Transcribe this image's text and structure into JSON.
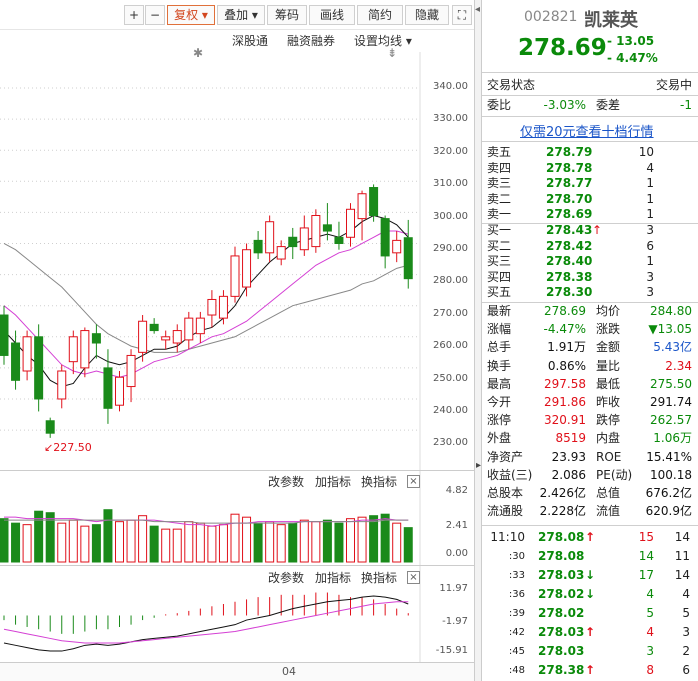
{
  "toolbar": {
    "buttons": [
      "+",
      "−",
      "复权",
      "叠加",
      "筹码",
      "画线",
      "简约",
      "隐藏"
    ],
    "expand_icon": "⛶"
  },
  "subbar": {
    "items": [
      "深股通",
      "融资融券",
      "设置均线"
    ]
  },
  "price_axis": [
    "340.00",
    "330.00",
    "320.00",
    "310.00",
    "300.00",
    "290.00",
    "280.00",
    "270.00",
    "260.00",
    "250.00",
    "240.00",
    "230.00"
  ],
  "low_marker": "227.50",
  "vol_panel": {
    "btns": [
      "改参数",
      "加指标",
      "换指标"
    ],
    "axis": [
      "4.82",
      "2.41",
      "0.00"
    ]
  },
  "macd_panel": {
    "btns": [
      "改参数",
      "加指标",
      "换指标"
    ],
    "axis": [
      "11.97",
      "-1.97",
      "-15.91"
    ]
  },
  "date_label": "04",
  "stock": {
    "code": "002821",
    "name": "凯莱英",
    "price": "278.69",
    "change": "- 13.05",
    "pct": "- 4.47%"
  },
  "status": {
    "label": "交易状态",
    "value": "交易中"
  },
  "weibi": {
    "l1": "委比",
    "v1": "-3.03%",
    "l2": "委差",
    "v2": "-1"
  },
  "promo": "仅需20元查看十档行情",
  "asks": [
    {
      "label": "卖五",
      "price": "278.79",
      "vol": "10"
    },
    {
      "label": "卖四",
      "price": "278.78",
      "vol": "4"
    },
    {
      "label": "卖三",
      "price": "278.77",
      "vol": "1"
    },
    {
      "label": "卖二",
      "price": "278.70",
      "vol": "1"
    },
    {
      "label": "卖一",
      "price": "278.69",
      "vol": "1"
    }
  ],
  "bids": [
    {
      "label": "买一",
      "price": "278.43",
      "vol": "3",
      "arrow": "↑"
    },
    {
      "label": "买二",
      "price": "278.42",
      "vol": "6",
      "arrow": ""
    },
    {
      "label": "买三",
      "price": "278.40",
      "vol": "1",
      "arrow": ""
    },
    {
      "label": "买四",
      "price": "278.38",
      "vol": "3",
      "arrow": ""
    },
    {
      "label": "买五",
      "price": "278.30",
      "vol": "3",
      "arrow": ""
    }
  ],
  "stats": [
    {
      "l1": "最新",
      "v1": "278.69",
      "c1": "green",
      "l2": "均价",
      "v2": "284.80",
      "c2": "green"
    },
    {
      "l1": "涨幅",
      "v1": "-4.47%",
      "c1": "green",
      "l2": "涨跌",
      "v2": "▼13.05",
      "c2": "green"
    },
    {
      "l1": "总手",
      "v1": "1.91万",
      "c1": "blk",
      "l2": "金额",
      "v2": "5.43亿",
      "c2": "blue"
    },
    {
      "l1": "换手",
      "v1": "0.86%",
      "c1": "blk",
      "l2": "量比",
      "v2": "2.34",
      "c2": "red"
    },
    {
      "l1": "最高",
      "v1": "297.58",
      "c1": "red",
      "l2": "最低",
      "v2": "275.50",
      "c2": "green"
    },
    {
      "l1": "今开",
      "v1": "291.86",
      "c1": "red",
      "l2": "昨收",
      "v2": "291.74",
      "c2": "blk"
    },
    {
      "l1": "涨停",
      "v1": "320.91",
      "c1": "red",
      "l2": "跌停",
      "v2": "262.57",
      "c2": "green"
    },
    {
      "l1": "外盘",
      "v1": "8519",
      "c1": "red",
      "l2": "内盘",
      "v2": "1.06万",
      "c2": "green"
    },
    {
      "l1": "净资产",
      "v1": "23.93",
      "c1": "blk",
      "l2": "ROE",
      "v2": "15.41%",
      "c2": "blk"
    },
    {
      "l1": "收益(三)",
      "v1": "2.086",
      "c1": "blk",
      "l2": "PE(动)",
      "v2": "100.18",
      "c2": "blk"
    },
    {
      "l1": "总股本",
      "v1": "2.426亿",
      "c1": "blk",
      "l2": "总值",
      "v2": "676.2亿",
      "c2": "blk"
    },
    {
      "l1": "流通股",
      "v1": "2.228亿",
      "c1": "blk",
      "l2": "流值",
      "v2": "620.9亿",
      "c2": "blk"
    }
  ],
  "ticks": [
    {
      "time": "11:10",
      "price": "278.08",
      "arrow": "↑",
      "ac": "red",
      "vol": "15",
      "vc": "red",
      "n": "14"
    },
    {
      "time": ":30",
      "price": "278.08",
      "arrow": "",
      "ac": "",
      "vol": "14",
      "vc": "green",
      "n": "11"
    },
    {
      "time": ":33",
      "price": "278.03",
      "arrow": "↓",
      "ac": "green",
      "vol": "17",
      "vc": "green",
      "n": "14"
    },
    {
      "time": ":36",
      "price": "278.02",
      "arrow": "↓",
      "ac": "green",
      "vol": "4",
      "vc": "green",
      "n": "4"
    },
    {
      "time": ":39",
      "price": "278.02",
      "arrow": "",
      "ac": "",
      "vol": "5",
      "vc": "green",
      "n": "5"
    },
    {
      "time": ":42",
      "price": "278.03",
      "arrow": "↑",
      "ac": "red",
      "vol": "4",
      "vc": "red",
      "n": "3"
    },
    {
      "time": ":45",
      "price": "278.03",
      "arrow": "",
      "ac": "",
      "vol": "3",
      "vc": "green",
      "n": "2"
    },
    {
      "time": ":48",
      "price": "278.38",
      "arrow": "↑",
      "ac": "red",
      "vol": "8",
      "vc": "red",
      "n": "6"
    }
  ],
  "colors": {
    "up": "#e0101a",
    "down": "#1a8a1a",
    "ma5": "#111111",
    "ma10": "#d43fd4",
    "ma20": "#888888"
  },
  "chart_data": {
    "type": "candlestick",
    "ylim": [
      225,
      345
    ],
    "candles": [
      {
        "o": 267,
        "h": 270,
        "l": 251,
        "c": 254
      },
      {
        "o": 258,
        "h": 262,
        "l": 243,
        "c": 246
      },
      {
        "o": 249,
        "h": 262,
        "l": 246,
        "c": 260
      },
      {
        "o": 260,
        "h": 264,
        "l": 236,
        "c": 240
      },
      {
        "o": 233,
        "h": 234,
        "l": 227.5,
        "c": 229
      },
      {
        "o": 240,
        "h": 251,
        "l": 237,
        "c": 249
      },
      {
        "o": 252,
        "h": 262,
        "l": 248,
        "c": 260
      },
      {
        "o": 250,
        "h": 263,
        "l": 247,
        "c": 262
      },
      {
        "o": 261,
        "h": 264,
        "l": 253,
        "c": 258
      },
      {
        "o": 250,
        "h": 256,
        "l": 232,
        "c": 237
      },
      {
        "o": 238,
        "h": 249,
        "l": 236,
        "c": 247
      },
      {
        "o": 244,
        "h": 256,
        "l": 239,
        "c": 254
      },
      {
        "o": 255,
        "h": 267,
        "l": 252,
        "c": 265
      },
      {
        "o": 264,
        "h": 266,
        "l": 261,
        "c": 262
      },
      {
        "o": 259,
        "h": 262,
        "l": 256,
        "c": 260
      },
      {
        "o": 258,
        "h": 264,
        "l": 255,
        "c": 262
      },
      {
        "o": 259,
        "h": 268,
        "l": 256,
        "c": 266
      },
      {
        "o": 261,
        "h": 268,
        "l": 258,
        "c": 266
      },
      {
        "o": 267,
        "h": 275,
        "l": 263,
        "c": 272
      },
      {
        "o": 266,
        "h": 275,
        "l": 264,
        "c": 273
      },
      {
        "o": 273,
        "h": 289,
        "l": 271,
        "c": 286
      },
      {
        "o": 276,
        "h": 290,
        "l": 273,
        "c": 288
      },
      {
        "o": 291,
        "h": 294,
        "l": 285,
        "c": 287
      },
      {
        "o": 287,
        "h": 299,
        "l": 284,
        "c": 297
      },
      {
        "o": 285,
        "h": 291,
        "l": 283,
        "c": 289
      },
      {
        "o": 292,
        "h": 295,
        "l": 285,
        "c": 289
      },
      {
        "o": 288,
        "h": 299,
        "l": 286,
        "c": 295
      },
      {
        "o": 289,
        "h": 301,
        "l": 287,
        "c": 299
      },
      {
        "o": 296,
        "h": 303,
        "l": 291,
        "c": 294
      },
      {
        "o": 292,
        "h": 297,
        "l": 288,
        "c": 290
      },
      {
        "o": 292,
        "h": 303,
        "l": 289,
        "c": 301
      },
      {
        "o": 298,
        "h": 307,
        "l": 291,
        "c": 306
      },
      {
        "o": 308,
        "h": 309,
        "l": 297,
        "c": 299
      },
      {
        "o": 298,
        "h": 299,
        "l": 282,
        "c": 286
      },
      {
        "o": 287,
        "h": 294,
        "l": 284,
        "c": 291
      },
      {
        "o": 291.86,
        "h": 297.58,
        "l": 275.5,
        "c": 278.69
      }
    ],
    "ma5": [
      262,
      258,
      254,
      251,
      246,
      244,
      245,
      250,
      254,
      252,
      251,
      252,
      254,
      256,
      256,
      257,
      260,
      262,
      263,
      266,
      270,
      276,
      280,
      284,
      287,
      290,
      291,
      292,
      293,
      292,
      294,
      297,
      299,
      298,
      296,
      292
    ],
    "ma10": [
      270,
      267,
      263,
      259,
      255,
      251,
      249,
      248,
      249,
      248,
      247,
      248,
      250,
      252,
      253,
      254,
      256,
      258,
      260,
      261,
      263,
      265,
      268,
      271,
      274,
      277,
      280,
      283,
      285,
      287,
      288,
      290,
      292,
      294,
      294,
      293
    ],
    "ma20": [
      290,
      288,
      285,
      282,
      279,
      276,
      272,
      268,
      264,
      261,
      259,
      257,
      256,
      255,
      255,
      255,
      256,
      257,
      258,
      259,
      260,
      262,
      264,
      266,
      268,
      270,
      271,
      272,
      273,
      274,
      275,
      277,
      278,
      280,
      282,
      283
    ],
    "volume": [
      2.9,
      2.6,
      2.5,
      3.4,
      3.3,
      2.6,
      2.8,
      2.4,
      2.5,
      3.5,
      2.7,
      2.8,
      3.1,
      2.4,
      2.2,
      2.2,
      2.7,
      2.6,
      2.4,
      2.5,
      3.2,
      3.0,
      2.6,
      2.7,
      2.5,
      2.6,
      2.8,
      2.7,
      2.8,
      2.6,
      2.9,
      3.0,
      3.1,
      3.2,
      2.6,
      2.3
    ],
    "vol_ylim": [
      0,
      4.82
    ],
    "vol_ma5": [
      3.0,
      3.0,
      2.9,
      2.9,
      2.9,
      2.9,
      2.9,
      2.8,
      2.7,
      2.8,
      2.8,
      2.8,
      2.8,
      2.8,
      2.7,
      2.6,
      2.5,
      2.5,
      2.4,
      2.5,
      2.6,
      2.6,
      2.7,
      2.7,
      2.7,
      2.7,
      2.7,
      2.7,
      2.7,
      2.7,
      2.7,
      2.8,
      2.8,
      2.9,
      2.8,
      2.8
    ],
    "vol_ma10": [
      2.8,
      2.8,
      2.8,
      2.8,
      2.8,
      2.8,
      2.8,
      2.8,
      2.8,
      2.8,
      2.8,
      2.8,
      2.8,
      2.7,
      2.7,
      2.7,
      2.7,
      2.6,
      2.6,
      2.6,
      2.6,
      2.6,
      2.6,
      2.6,
      2.6,
      2.6,
      2.7,
      2.7,
      2.7,
      2.7,
      2.7,
      2.7,
      2.7,
      2.8,
      2.8,
      2.8
    ],
    "macd_ylim": [
      -15.91,
      11.97
    ],
    "macd_hist": [
      -2,
      -4,
      -5,
      -6,
      -7,
      -8,
      -8,
      -7,
      -6,
      -6,
      -5,
      -4,
      -2,
      -1,
      0.5,
      1,
      2,
      3,
      4,
      5,
      6,
      7,
      8,
      8,
      9,
      9,
      9,
      10,
      10,
      9,
      8,
      8,
      7,
      5,
      3,
      1
    ],
    "dif": [
      -12,
      -13,
      -14,
      -15,
      -15.5,
      -15.5,
      -14.5,
      -13,
      -12.5,
      -13,
      -12.5,
      -11.5,
      -10.5,
      -10,
      -9.5,
      -9,
      -8,
      -7,
      -6,
      -5,
      -4,
      -2,
      -1,
      0,
      1.5,
      3,
      4,
      5,
      6,
      6.5,
      7,
      8,
      8.5,
      8,
      7,
      5
    ],
    "dea": [
      -6,
      -7,
      -8,
      -9,
      -10,
      -11,
      -11.5,
      -12,
      -12,
      -12,
      -12,
      -11.5,
      -11,
      -10.5,
      -10,
      -9.5,
      -9,
      -8.5,
      -8,
      -7.5,
      -7,
      -6,
      -5,
      -4,
      -3,
      -2,
      -1,
      0,
      1,
      2,
      3,
      4,
      5,
      5.5,
      6,
      6
    ]
  }
}
